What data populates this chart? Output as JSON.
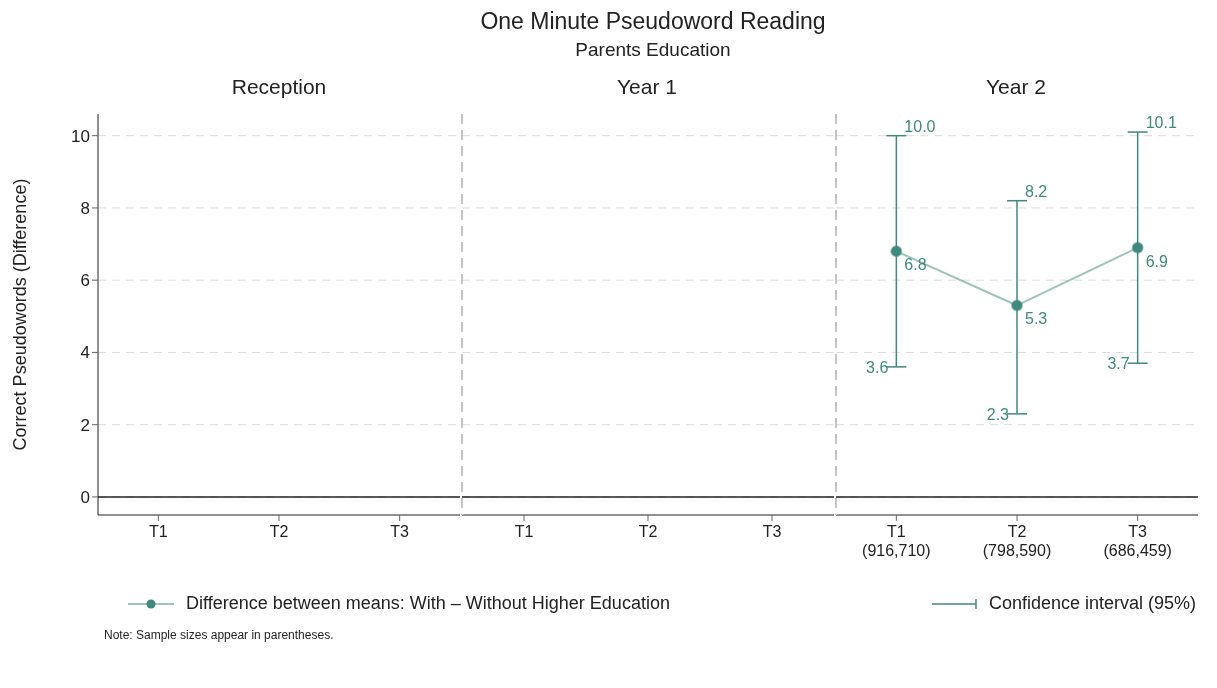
{
  "chart_data": [
    {
      "type": "line",
      "title": "Reception",
      "ylabel": "Correct Pseudowords (Difference)",
      "categories": [
        "T1",
        "T2",
        "T3"
      ],
      "series": [
        {
          "color": "#3f8a7a",
          "values": [
            null,
            null,
            null
          ]
        }
      ],
      "ylim": [
        -0.5,
        10.6
      ],
      "yticks": [
        0,
        2,
        4,
        6,
        8,
        10
      ],
      "grid": "y",
      "ref_lines": [
        {
          "axis": "y",
          "value": 0,
          "color": "#222222"
        }
      ]
    },
    {
      "type": "line",
      "title": "Year 1",
      "categories": [
        "T1",
        "T2",
        "T3"
      ],
      "series": [
        {
          "color": "#3f8a7a",
          "values": [
            null,
            null,
            null
          ]
        }
      ],
      "ylim": [
        -0.5,
        10.6
      ],
      "yticks": [
        0,
        2,
        4,
        6,
        8,
        10
      ],
      "grid": "y",
      "tick_labels": "x",
      "ref_lines": [
        {
          "axis": "y",
          "value": 0,
          "color": "#222222"
        }
      ],
      "annotations": [
        "One Minute Pseudoword Reading",
        "Parents Education"
      ]
    },
    {
      "type": "line",
      "title": "Year 2",
      "categories": [
        "T1\n(916,710)",
        "T2\n(798,590)",
        "T3\n(686,459)"
      ],
      "series": [
        {
          "name": "Difference between means: With – Without Higher Education",
          "color": "#3f8a7a",
          "values": [
            6.8,
            5.3,
            6.9
          ],
          "errors": [
            [
              3.6,
              10.0
            ],
            [
              2.3,
              8.2
            ],
            [
              3.7,
              10.1
            ]
          ]
        }
      ],
      "ylim": [
        -0.5,
        10.6
      ],
      "yticks": [
        0,
        2,
        4,
        6,
        8,
        10
      ],
      "grid": "y",
      "tick_labels": "x",
      "data_labels": true,
      "marker": "circle",
      "legend": "bottom",
      "ref_lines": [
        {
          "axis": "y",
          "value": 0,
          "color": "#222222"
        }
      ],
      "annotations": [
        "Confidence interval (95%)",
        "Note: Sample sizes appear in parentheses.",
        {
          "text": "10.0",
          "x": "T1\n(916,710)",
          "y": 10.0
        },
        {
          "text": "3.6",
          "x": "T1\n(916,710)",
          "y": 3.6
        },
        {
          "text": "8.2",
          "x": "T2\n(798,590)",
          "y": 8.2
        },
        {
          "text": "2.3",
          "x": "T2\n(798,590)",
          "y": 2.3
        },
        {
          "text": "10.1",
          "x": "T3\n(686,459)",
          "y": 10.1
        },
        {
          "text": "3.7",
          "x": "T3\n(686,459)",
          "y": 3.7
        }
      ]
    }
  ]
}
